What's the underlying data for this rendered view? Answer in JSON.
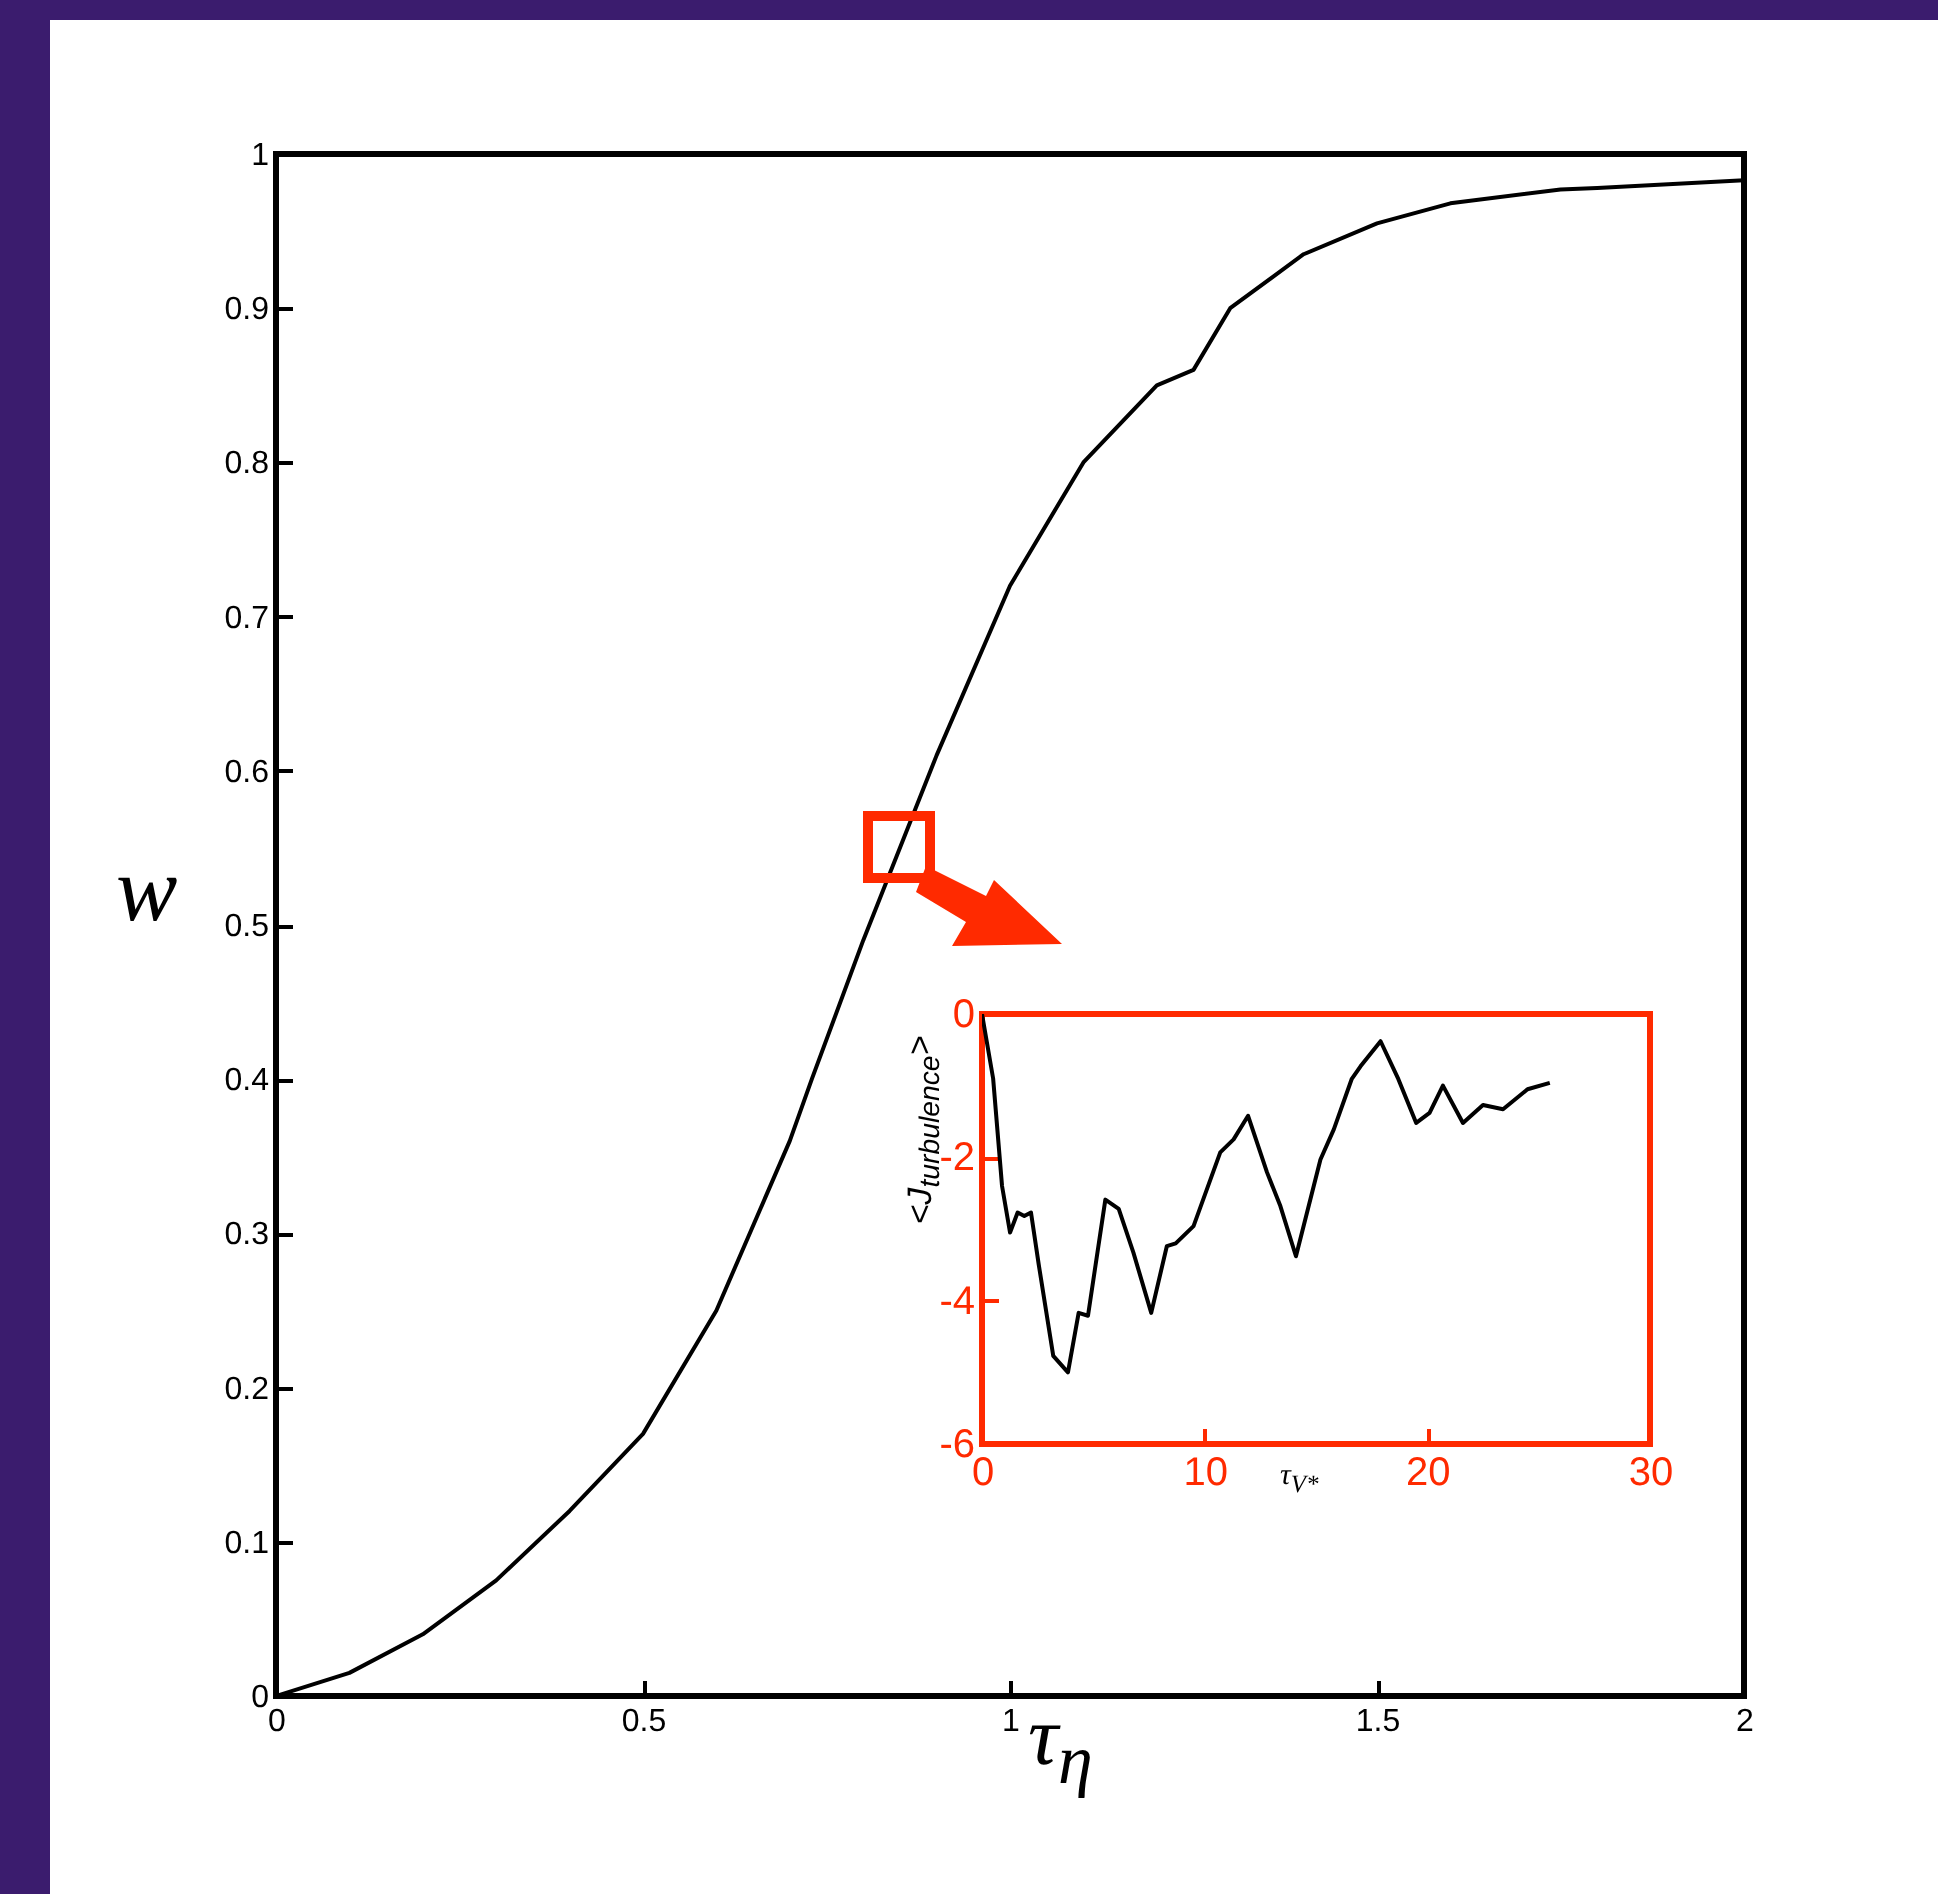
{
  "chart_data": [
    {
      "type": "line",
      "xlabel": "τ$_{η}$",
      "ylabel": "w",
      "x": [
        0,
        0.1,
        0.2,
        0.3,
        0.4,
        0.5,
        0.6,
        0.7,
        0.73,
        0.8,
        0.9,
        1.0,
        1.1,
        1.2,
        1.25,
        1.3,
        1.4,
        1.5,
        1.6,
        1.75,
        1.8,
        2.0
      ],
      "series": [
        {
          "color": "#000000",
          "values": [
            0,
            0.015,
            0.04,
            0.075,
            0.12,
            0.17,
            0.25,
            0.36,
            0.4,
            0.49,
            0.61,
            0.72,
            0.8,
            0.85,
            0.86,
            0.9,
            0.935,
            0.955,
            0.968,
            0.977,
            0.978,
            0.983
          ]
        }
      ],
      "xlim": [
        0,
        2
      ],
      "ylim": [
        0,
        1
      ],
      "xticks": [
        0,
        0.5,
        1,
        1.5,
        2
      ],
      "yticks": [
        0,
        0.1,
        0.2,
        0.3,
        0.4,
        0.5,
        0.6,
        0.7,
        0.8,
        0.9,
        1
      ],
      "grid": false
    },
    {
      "type": "line",
      "xlabel": "τ$_{V*}$",
      "ylabel": "<J$_{turbulence}$>",
      "x": [
        0,
        0.5,
        0.9,
        1.26,
        1.6,
        1.9,
        2.2,
        2.55,
        3.2,
        3.86,
        4.34,
        4.76,
        5.54,
        6.14,
        6.8,
        7.6,
        8.3,
        8.7,
        9.5,
        10.7,
        11.3,
        11.95,
        12.8,
        13.4,
        14.1,
        15.2,
        15.8,
        16.6,
        17.0,
        17.9,
        18.7,
        19.5,
        20.1,
        20.7,
        21.6,
        22.5,
        23.4,
        24.5,
        25.5
      ],
      "series": [
        {
          "color": "#000000",
          "values": [
            0,
            -0.9,
            -2.4,
            -3.05,
            -2.77,
            -2.82,
            -2.77,
            -3.5,
            -4.77,
            -5.0,
            -4.17,
            -4.21,
            -2.59,
            -2.72,
            -3.33,
            -4.17,
            -3.24,
            -3.2,
            -2.96,
            -1.93,
            -1.75,
            -1.42,
            -2.21,
            -2.68,
            -3.38,
            -2.03,
            -1.61,
            -0.91,
            -0.73,
            -0.38,
            -0.91,
            -1.52,
            -1.38,
            -1.0,
            -1.52,
            -1.27,
            -1.33,
            -1.05,
            -0.96
          ]
        }
      ],
      "xlim": [
        0,
        30
      ],
      "ylim": [
        -6,
        0
      ],
      "xticks": [
        0,
        10,
        20,
        30
      ],
      "yticks": [
        0,
        -2,
        -4,
        -6
      ],
      "grid": false
    }
  ]
}
